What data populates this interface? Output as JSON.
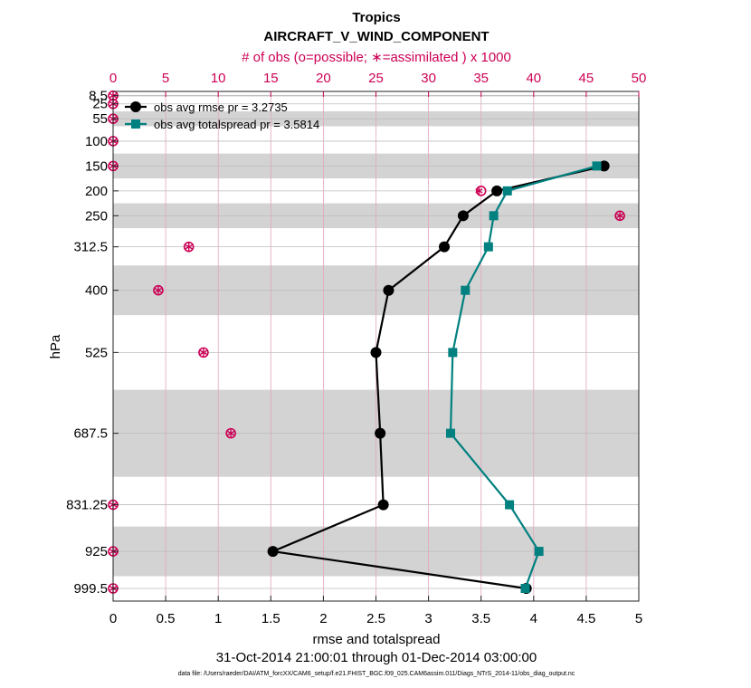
{
  "chart_data": {
    "type": "line",
    "title": "Tropics",
    "subtitle": "AIRCRAFT_V_WIND_COMPONENT",
    "top_axis_label": "# of obs (o=possible; ∗=assimilated ) x 1000",
    "xlabel": "rmse and totalspread",
    "ylabel": "hPa",
    "date_range": "31-Oct-2014 21:00:01 through 01-Dec-2014 03:00:00",
    "footer": "data file: /Users/raeder/DAI/ATM_forcXX/CAM6_setup/f.e21.FHIST_BGC.f09_025.CAM6assim.011/Diags_NTrS_2014-11/obs_diag_output.nc",
    "xlim": [
      0,
      5
    ],
    "x_ticks": [
      0,
      0.5,
      1,
      1.5,
      2,
      2.5,
      3,
      3.5,
      4,
      4.5,
      5
    ],
    "x_tick_labels": [
      "0",
      "0.5",
      "1",
      "1.5",
      "2",
      "2.5",
      "3",
      "3.5",
      "4",
      "4.5",
      "5"
    ],
    "top_xlim": [
      0,
      50
    ],
    "top_ticks": [
      0,
      5,
      10,
      15,
      20,
      25,
      30,
      35,
      40,
      45,
      50
    ],
    "top_tick_labels": [
      "0",
      "5",
      "10",
      "15",
      "20",
      "25",
      "30",
      "35",
      "40",
      "45",
      "50"
    ],
    "levels": [
      8.5,
      25,
      55,
      100,
      150,
      200,
      250,
      312.5,
      400,
      525,
      687.5,
      831.25,
      925,
      999.5
    ],
    "level_labels": [
      "8.5",
      "25",
      "55",
      "100",
      "150",
      "200",
      "250",
      "312.5",
      "400",
      "525",
      "687.5",
      "831.25",
      "925",
      "999.5"
    ],
    "ylim": [
      0,
      1025
    ],
    "shaded_layers": [
      [
        7,
        10
      ],
      [
        40,
        70
      ],
      [
        125,
        175
      ],
      [
        225,
        275
      ],
      [
        350,
        450
      ],
      [
        600,
        775
      ],
      [
        875,
        975
      ]
    ],
    "series": [
      {
        "name": "obs avg rmse",
        "legend": "obs avg rmse  pr = 3.2735",
        "color": "#000000",
        "marker": "circle",
        "points": [
          [
            4.67,
            150
          ],
          [
            3.65,
            200
          ],
          [
            3.33,
            250
          ],
          [
            3.15,
            312.5
          ],
          [
            2.62,
            400
          ],
          [
            2.5,
            525
          ],
          [
            2.54,
            687.5
          ],
          [
            2.57,
            831.25
          ],
          [
            1.52,
            925
          ],
          [
            3.93,
            999.5
          ]
        ]
      },
      {
        "name": "obs avg totalspread",
        "legend": "obs avg totalspread  pr = 3.5814",
        "color": "#00807f",
        "marker": "square",
        "points": [
          [
            4.6,
            150
          ],
          [
            3.75,
            200
          ],
          [
            3.62,
            250
          ],
          [
            3.57,
            312.5
          ],
          [
            3.35,
            400
          ],
          [
            3.23,
            525
          ],
          [
            3.21,
            687.5
          ],
          [
            3.77,
            831.25
          ],
          [
            4.05,
            925
          ],
          [
            3.92,
            999.5
          ]
        ]
      }
    ],
    "obs_counts": {
      "color": "#cc0055",
      "possible": [
        [
          0,
          8.5
        ],
        [
          0,
          25
        ],
        [
          0,
          55
        ],
        [
          0,
          100
        ],
        [
          0,
          150
        ],
        [
          35,
          200
        ],
        [
          48.2,
          250
        ],
        [
          7.2,
          312.5
        ],
        [
          4.3,
          400
        ],
        [
          8.6,
          525
        ],
        [
          11.2,
          687.5
        ],
        [
          0,
          831.25
        ],
        [
          0,
          925
        ],
        [
          0,
          999.5
        ]
      ],
      "assimilated": [
        [
          0,
          8.5
        ],
        [
          0,
          25
        ],
        [
          0,
          55
        ],
        [
          0,
          100
        ],
        [
          0,
          150
        ],
        [
          34.8,
          200
        ],
        [
          48.2,
          250
        ],
        [
          7.2,
          312.5
        ],
        [
          4.3,
          400
        ],
        [
          8.6,
          525
        ],
        [
          11.2,
          687.5
        ],
        [
          0,
          831.25
        ],
        [
          0,
          925
        ],
        [
          0,
          999.5
        ]
      ]
    }
  }
}
